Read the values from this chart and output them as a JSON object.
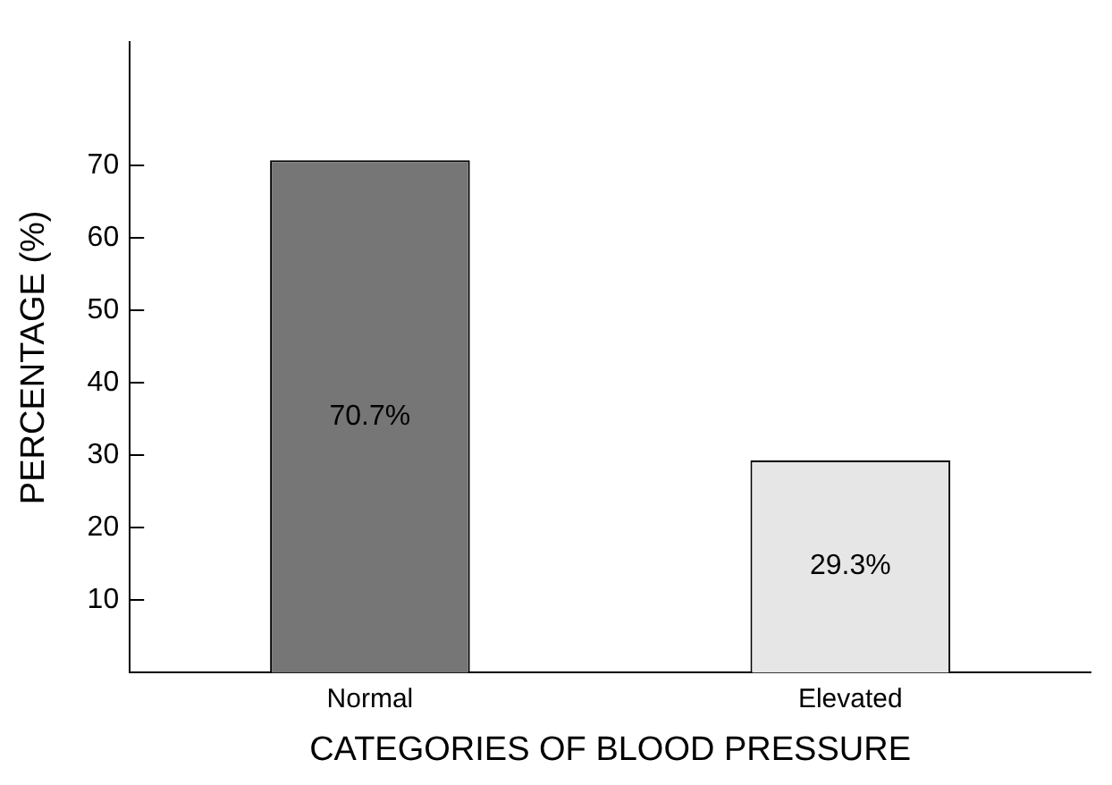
{
  "chart_data": {
    "type": "bar",
    "xlabel": "CATEGORIES OF BLOOD PRESSURE",
    "ylabel": "PERCENTAGE (%)",
    "categories": [
      "Normal",
      "Elevated"
    ],
    "values": [
      70.7,
      29.3
    ],
    "colors": [
      "#767676",
      "#e6e6e6"
    ],
    "value_labels": [
      "70.7%",
      "29.3%"
    ],
    "ylim": [
      0,
      87
    ],
    "yticks": [
      10,
      20,
      30,
      40,
      50,
      60,
      70
    ],
    "grid": false,
    "legend": false
  }
}
